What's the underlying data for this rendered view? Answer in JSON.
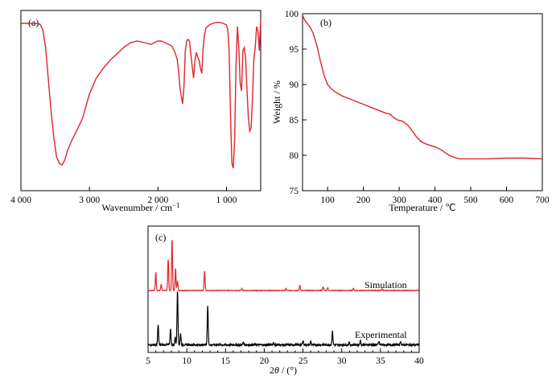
{
  "colors": {
    "red": "#e0242b",
    "black": "#000000"
  },
  "chart_data": [
    {
      "panel": "(a)",
      "type": "line",
      "xlabel": "Wavenumber / cm",
      "xlabel_sup": "−1",
      "ylabel": "",
      "xlim": [
        4000,
        500
      ],
      "xticks": [
        4000,
        3000,
        2000,
        1000
      ],
      "xtick_labels": [
        "4 000",
        "3 000",
        "2 000",
        "1 000"
      ],
      "ylim": [
        0,
        100
      ],
      "yticks": [],
      "color": "#e0242b",
      "x": [
        4000,
        3800,
        3720,
        3680,
        3640,
        3600,
        3560,
        3520,
        3480,
        3440,
        3400,
        3360,
        3320,
        3260,
        3200,
        3100,
        3000,
        2900,
        2800,
        2700,
        2600,
        2500,
        2400,
        2300,
        2200,
        2100,
        2050,
        2000,
        1950,
        1900,
        1850,
        1800,
        1760,
        1720,
        1700,
        1680,
        1660,
        1640,
        1620,
        1600,
        1580,
        1560,
        1540,
        1500,
        1480,
        1460,
        1440,
        1420,
        1400,
        1380,
        1360,
        1340,
        1320,
        1300,
        1250,
        1200,
        1150,
        1100,
        1050,
        1000,
        980,
        960,
        940,
        920,
        900,
        880,
        860,
        840,
        820,
        800,
        780,
        760,
        740,
        720,
        700,
        680,
        660,
        640,
        620,
        600,
        580,
        560,
        540,
        520,
        500
      ],
      "y": [
        97,
        97,
        96.5,
        93,
        82,
        62,
        42,
        26,
        14,
        10,
        9,
        12,
        18,
        24,
        29,
        38,
        53,
        63,
        69,
        74,
        78,
        82,
        85,
        86,
        85,
        84,
        85,
        86,
        86,
        85,
        84,
        83,
        80,
        75,
        68,
        58,
        52,
        47,
        57,
        80,
        86,
        87,
        86,
        70,
        63,
        74,
        79,
        76,
        74,
        69,
        66,
        82,
        90,
        94,
        96,
        97,
        97.5,
        97.5,
        97,
        96,
        93,
        80,
        40,
        10,
        7,
        25,
        70,
        95,
        82,
        60,
        55,
        80,
        82,
        75,
        55,
        38,
        30,
        32,
        50,
        75,
        82,
        95,
        92,
        80,
        100
      ]
    },
    {
      "panel": "(b)",
      "type": "line",
      "xlabel": "Temperature / ℃",
      "ylabel": "Weight / %",
      "xlim": [
        30,
        700
      ],
      "xticks": [
        100,
        200,
        300,
        400,
        500,
        600,
        700
      ],
      "ylim": [
        75,
        100
      ],
      "yticks": [
        75,
        80,
        85,
        90,
        95,
        100
      ],
      "color": "#e0242b",
      "x": [
        30,
        35,
        40,
        50,
        60,
        70,
        80,
        90,
        100,
        110,
        120,
        140,
        160,
        180,
        200,
        220,
        240,
        260,
        275,
        285,
        295,
        310,
        325,
        340,
        350,
        360,
        370,
        380,
        400,
        420,
        430,
        440,
        450,
        460,
        470,
        480,
        500,
        550,
        600,
        650,
        700
      ],
      "y": [
        99.8,
        99.2,
        98.8,
        98.2,
        97.2,
        95.5,
        93.3,
        91.3,
        90.0,
        89.4,
        89.0,
        88.4,
        88.0,
        87.6,
        87.2,
        86.8,
        86.4,
        86.0,
        85.8,
        85.3,
        85.0,
        84.8,
        84.2,
        83.2,
        82.5,
        82.0,
        81.7,
        81.5,
        81.2,
        80.7,
        80.3,
        80.0,
        79.8,
        79.6,
        79.5,
        79.5,
        79.5,
        79.5,
        79.6,
        79.6,
        79.5
      ]
    },
    {
      "panel": "(c)",
      "type": "line",
      "xlabel_prefix": "2",
      "xlabel_theta": "θ",
      "xlabel_suffix": " / (°)",
      "ylabel": "",
      "xlim": [
        5,
        40
      ],
      "xticks": [
        5,
        10,
        15,
        20,
        25,
        30,
        35,
        40
      ],
      "ylim": [
        0,
        100
      ],
      "series": [
        {
          "name": "Simulation",
          "color": "#e0242b",
          "baseline": 49,
          "scale": 41,
          "peaks": [
            [
              6.0,
              0.35
            ],
            [
              6.7,
              0.12
            ],
            [
              7.6,
              0.6
            ],
            [
              8.1,
              1.0
            ],
            [
              8.55,
              0.42
            ],
            [
              8.8,
              0.18
            ],
            [
              12.3,
              0.38
            ],
            [
              17.1,
              0.04
            ],
            [
              22.8,
              0.04
            ],
            [
              24.6,
              0.1
            ],
            [
              27.6,
              0.07
            ],
            [
              28.2,
              0.05
            ],
            [
              31.5,
              0.04
            ],
            [
              35.2,
              0.03
            ]
          ]
        },
        {
          "name": "Experimental",
          "color": "#000000",
          "baseline": 6,
          "scale": 44,
          "peaks": [
            [
              6.3,
              0.36
            ],
            [
              7.9,
              0.28
            ],
            [
              8.5,
              0.13
            ],
            [
              8.8,
              1.0
            ],
            [
              9.2,
              0.2
            ],
            [
              12.7,
              0.71
            ],
            [
              17.3,
              0.05
            ],
            [
              21.2,
              0.04
            ],
            [
              25.0,
              0.08
            ],
            [
              26.0,
              0.06
            ],
            [
              28.8,
              0.24
            ],
            [
              31.0,
              0.04
            ],
            [
              32.4,
              0.08
            ],
            [
              34.8,
              0.06
            ],
            [
              37.6,
              0.06
            ]
          ]
        }
      ]
    }
  ]
}
